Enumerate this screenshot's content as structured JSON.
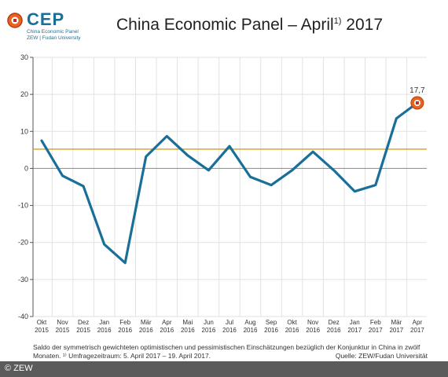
{
  "logo": {
    "name": "CEP",
    "line1": "China Economic Panel",
    "line2": "ZEW | Fudan University"
  },
  "title_main": "China Economic Panel – April",
  "title_sup": "1)",
  "title_year": "2017",
  "footnote_line1": "Saldo der symmetrisch gewichteten optimistischen und pessimistischen Einschätzungen bezüglich der Konjunktur in China in zwölf",
  "footnote_line2": "Monaten. ¹⁾ Umfragezeitraum: 5. April 2017 – 19. April 2017.",
  "source": "Quelle: ZEW/Fudan Universität",
  "copyright": "© ZEW",
  "colors": {
    "line": "#1a6f99",
    "reference": "#d4a017",
    "zero": "#888888",
    "marker_outer": "#e8641e"
  },
  "chart_data": {
    "type": "line",
    "ylim": [
      -40,
      30
    ],
    "yticks": [
      30,
      20,
      10,
      0,
      -10,
      -20,
      -30,
      -40
    ],
    "categories": [
      {
        "month": "Okt",
        "year": "2015"
      },
      {
        "month": "Nov",
        "year": "2015"
      },
      {
        "month": "Dez",
        "year": "2015"
      },
      {
        "month": "Jan",
        "year": "2016"
      },
      {
        "month": "Feb",
        "year": "2016"
      },
      {
        "month": "Mär",
        "year": "2016"
      },
      {
        "month": "Apr",
        "year": "2016"
      },
      {
        "month": "Mai",
        "year": "2016"
      },
      {
        "month": "Jun",
        "year": "2016"
      },
      {
        "month": "Jul",
        "year": "2016"
      },
      {
        "month": "Aug",
        "year": "2016"
      },
      {
        "month": "Sep",
        "year": "2016"
      },
      {
        "month": "Okt",
        "year": "2016"
      },
      {
        "month": "Nov",
        "year": "2016"
      },
      {
        "month": "Dez",
        "year": "2016"
      },
      {
        "month": "Jan",
        "year": "2017"
      },
      {
        "month": "Feb",
        "year": "2017"
      },
      {
        "month": "Mär",
        "year": "2017"
      },
      {
        "month": "Apr",
        "year": "2017"
      }
    ],
    "values": [
      7.5,
      -2,
      -4.8,
      -20.5,
      -25.5,
      3.2,
      8.7,
      3.5,
      -0.5,
      6,
      -2.3,
      -4.5,
      -0.5,
      4.5,
      -0.5,
      -6.2,
      -4.5,
      13.5,
      17.7
    ],
    "reference_line": 5.2,
    "last_label": "17,7",
    "grid": true
  }
}
